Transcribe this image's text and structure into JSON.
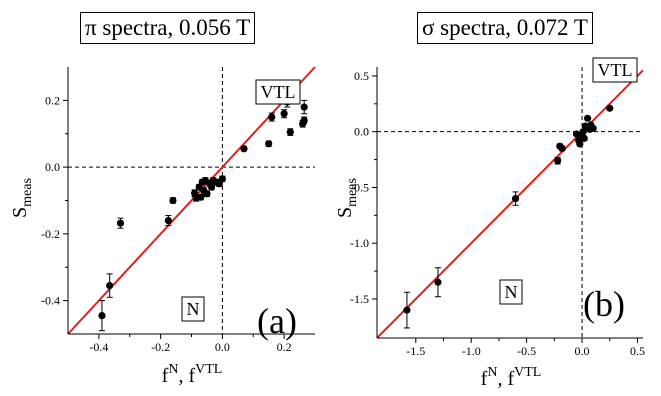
{
  "chart_data": [
    {
      "panel": "a",
      "type": "scatter",
      "title": "π spectra, 0.056 T",
      "xlabel_base": "f",
      "xlabel_sup1": "N",
      "xlabel_mid": ", f",
      "xlabel_sup2": "VTL",
      "ylabel_base": "S",
      "ylabel_sub": "meas",
      "xlim": [
        -0.5,
        0.3
      ],
      "ylim": [
        -0.5,
        0.3
      ],
      "xticks": [
        -0.4,
        -0.2,
        0.0,
        0.2
      ],
      "xtick_labels": [
        "-0.4",
        "-0.2",
        "0.0",
        "0.2"
      ],
      "yticks": [
        -0.4,
        -0.2,
        0.0,
        0.2
      ],
      "ytick_labels": [
        "-0.4",
        "-0.2",
        "0.0",
        "0.2"
      ],
      "region_labels": [
        {
          "text": "VTL",
          "anchor": "upper-right-quadrant"
        },
        {
          "text": "N",
          "anchor": "lower-left-quadrant"
        }
      ],
      "panel_letter": "(a)",
      "fit_line": {
        "color": "#e0201c",
        "x": [
          -0.5,
          0.3
        ],
        "y": [
          -0.5,
          0.3
        ]
      },
      "reference_lines": {
        "x": 0,
        "y": 0,
        "style": "dashed"
      },
      "points": [
        {
          "x": -0.39,
          "y": -0.445,
          "err": 0.045
        },
        {
          "x": -0.365,
          "y": -0.355,
          "err": 0.035
        },
        {
          "x": -0.33,
          "y": -0.168,
          "err": 0.015
        },
        {
          "x": -0.175,
          "y": -0.16,
          "err": 0.015
        },
        {
          "x": -0.16,
          "y": -0.1,
          "err": 0.008
        },
        {
          "x": -0.09,
          "y": -0.078,
          "err": 0.01
        },
        {
          "x": -0.085,
          "y": -0.092,
          "err": 0.01
        },
        {
          "x": -0.075,
          "y": -0.06,
          "err": 0.008
        },
        {
          "x": -0.07,
          "y": -0.09,
          "err": 0.008
        },
        {
          "x": -0.065,
          "y": -0.045,
          "err": 0.008
        },
        {
          "x": -0.06,
          "y": -0.07,
          "err": 0.008
        },
        {
          "x": -0.055,
          "y": -0.04,
          "err": 0.008
        },
        {
          "x": -0.05,
          "y": -0.08,
          "err": 0.008
        },
        {
          "x": -0.04,
          "y": -0.05,
          "err": 0.008
        },
        {
          "x": -0.035,
          "y": -0.06,
          "err": 0.008
        },
        {
          "x": -0.03,
          "y": -0.04,
          "err": 0.008
        },
        {
          "x": -0.02,
          "y": -0.045,
          "err": 0.008
        },
        {
          "x": -0.01,
          "y": -0.05,
          "err": 0.008
        },
        {
          "x": 0.0,
          "y": -0.035,
          "err": 0.008
        },
        {
          "x": 0.07,
          "y": 0.055,
          "err": 0.006
        },
        {
          "x": 0.15,
          "y": 0.07,
          "err": 0.008
        },
        {
          "x": 0.16,
          "y": 0.15,
          "err": 0.012
        },
        {
          "x": 0.2,
          "y": 0.16,
          "err": 0.012
        },
        {
          "x": 0.21,
          "y": 0.195,
          "err": 0.015
        },
        {
          "x": 0.22,
          "y": 0.105,
          "err": 0.01
        },
        {
          "x": 0.26,
          "y": 0.13,
          "err": 0.01
        },
        {
          "x": 0.265,
          "y": 0.14,
          "err": 0.01
        },
        {
          "x": 0.265,
          "y": 0.18,
          "err": 0.02
        }
      ]
    },
    {
      "panel": "b",
      "type": "scatter",
      "title": "σ spectra, 0.072 T",
      "xlabel_base": "f",
      "xlabel_sup1": "N",
      "xlabel_mid": ", f",
      "xlabel_sup2": "VTL",
      "ylabel_base": "S",
      "ylabel_sub": "meas",
      "xlim": [
        -1.85,
        0.55
      ],
      "ylim": [
        -1.85,
        0.58
      ],
      "xticks": [
        -1.5,
        -1.0,
        -0.5,
        0.0,
        0.5
      ],
      "xtick_labels": [
        "-1.5",
        "-1.0",
        "-0.5",
        "0.0",
        "0.5"
      ],
      "yticks": [
        -1.5,
        -1.0,
        -0.5,
        0.0,
        0.5
      ],
      "ytick_labels": [
        "-1.5",
        "-1.0",
        "-0.5",
        "0.0",
        "0.5"
      ],
      "region_labels": [
        {
          "text": "VTL",
          "anchor": "upper-right-quadrant"
        },
        {
          "text": "N",
          "anchor": "lower-left-quadrant"
        }
      ],
      "panel_letter": "(b)",
      "fit_line": {
        "color": "#e0201c",
        "x": [
          -1.85,
          0.55
        ],
        "y": [
          -1.85,
          0.55
        ]
      },
      "reference_lines": {
        "x": 0,
        "y": 0,
        "style": "dashed"
      },
      "points": [
        {
          "x": -1.58,
          "y": -1.6,
          "err": 0.16
        },
        {
          "x": -1.3,
          "y": -1.35,
          "err": 0.13
        },
        {
          "x": -0.6,
          "y": -0.6,
          "err": 0.06
        },
        {
          "x": -0.22,
          "y": -0.26,
          "err": 0.03
        },
        {
          "x": -0.2,
          "y": -0.13,
          "err": 0.02
        },
        {
          "x": -0.18,
          "y": -0.15,
          "err": 0.02
        },
        {
          "x": -0.05,
          "y": -0.02,
          "err": 0.015
        },
        {
          "x": -0.03,
          "y": -0.08,
          "err": 0.015
        },
        {
          "x": -0.02,
          "y": -0.11,
          "err": 0.015
        },
        {
          "x": -0.01,
          "y": -0.05,
          "err": 0.015
        },
        {
          "x": 0.0,
          "y": -0.03,
          "err": 0.015
        },
        {
          "x": 0.01,
          "y": 0.0,
          "err": 0.015
        },
        {
          "x": 0.02,
          "y": -0.06,
          "err": 0.015
        },
        {
          "x": 0.03,
          "y": 0.05,
          "err": 0.015
        },
        {
          "x": 0.05,
          "y": 0.12,
          "err": 0.015
        },
        {
          "x": 0.07,
          "y": 0.02,
          "err": 0.015
        },
        {
          "x": 0.08,
          "y": 0.06,
          "err": 0.015
        },
        {
          "x": 0.1,
          "y": 0.03,
          "err": 0.015
        },
        {
          "x": 0.25,
          "y": 0.21,
          "err": 0.015
        }
      ]
    }
  ]
}
